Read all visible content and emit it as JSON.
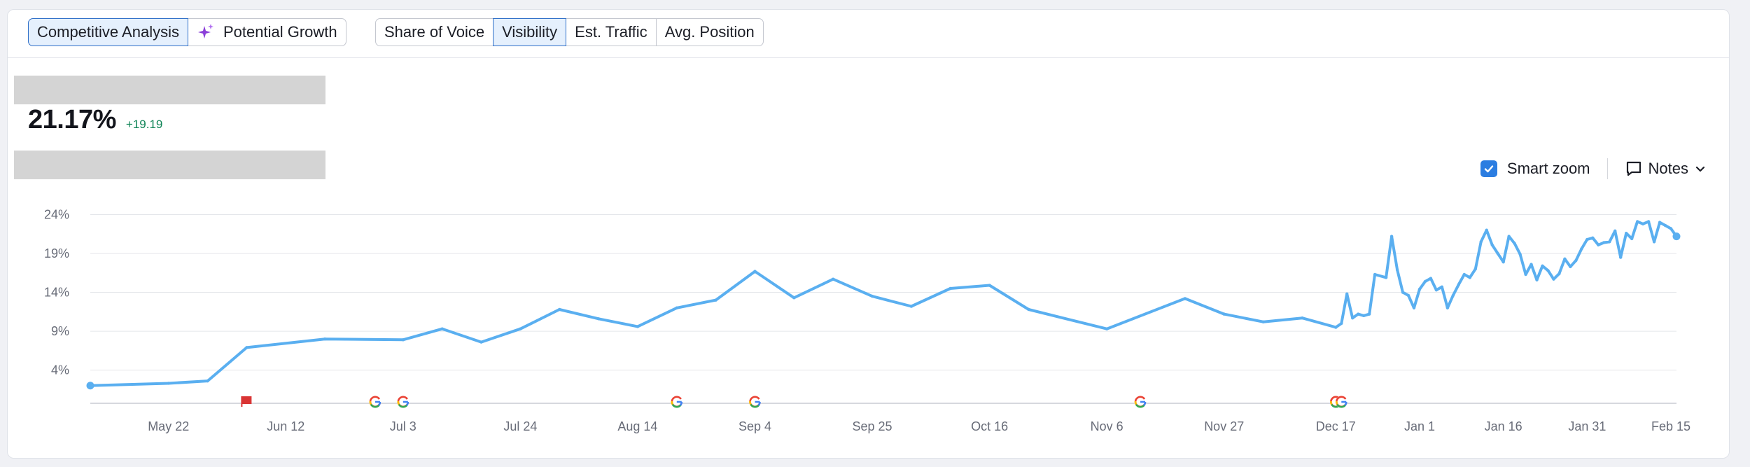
{
  "toolbar": {
    "analysis_tabs": [
      {
        "label": "Competitive Analysis",
        "active": true
      },
      {
        "label": "Potential Growth",
        "active": false,
        "icon": "sparkle-icon"
      }
    ],
    "metric_tabs": [
      {
        "label": "Share of Voice",
        "active": false
      },
      {
        "label": "Visibility",
        "active": true
      },
      {
        "label": "Est. Traffic",
        "active": false
      },
      {
        "label": "Avg. Position",
        "active": false
      }
    ]
  },
  "summary": {
    "value": "21.17%",
    "delta": "+19.19"
  },
  "controls": {
    "smart_zoom_label": "Smart zoom",
    "smart_zoom_checked": true,
    "notes_label": "Notes"
  },
  "colors": {
    "line": "#5aaff0",
    "accent": "#2b7de1",
    "positive": "#0f8456",
    "grid": "#e4e6ea",
    "note_flag": "#d93434",
    "google_blue": "#4285f4",
    "google_red": "#ea4335",
    "google_yellow": "#fbbc05",
    "google_green": "#34a853"
  },
  "chart_data": {
    "type": "line",
    "y_tick_labels": [
      "24%",
      "19%",
      "14%",
      "9%",
      "4%"
    ],
    "y_ticks": [
      24,
      19,
      14,
      9,
      4
    ],
    "ylim": [
      0,
      24
    ],
    "x_tick_labels": [
      "May 22",
      "Jun 12",
      "Jul 3",
      "Jul 24",
      "Aug 14",
      "Sep 4",
      "Sep 25",
      "Oct 16",
      "Nov 6",
      "Nov 27",
      "Dec 17",
      "Jan 1",
      "Jan 16",
      "Jan 31",
      "Feb 15"
    ],
    "grid": true,
    "series": [
      {
        "values": [
          [
            "May 8",
            2.0
          ],
          [
            "May 22",
            2.3
          ],
          [
            "May 29",
            2.6
          ],
          [
            "Jun 5",
            6.9
          ],
          [
            "Jun 19",
            8.0
          ],
          [
            "Jul 3",
            7.9
          ],
          [
            "Jul 10",
            9.3
          ],
          [
            "Jul 17",
            7.6
          ],
          [
            "Jul 24",
            9.3
          ],
          [
            "Jul 31",
            11.8
          ],
          [
            "Aug 7",
            10.6
          ],
          [
            "Aug 14",
            9.6
          ],
          [
            "Aug 21",
            12.0
          ],
          [
            "Aug 28",
            13.0
          ],
          [
            "Sep 4",
            16.7
          ],
          [
            "Sep 11",
            13.3
          ],
          [
            "Sep 18",
            15.7
          ],
          [
            "Sep 25",
            13.5
          ],
          [
            "Oct 2",
            12.2
          ],
          [
            "Oct 9",
            14.5
          ],
          [
            "Oct 16",
            14.9
          ],
          [
            "Oct 23",
            11.8
          ],
          [
            "Nov 6",
            9.3
          ],
          [
            "Nov 20",
            13.2
          ],
          [
            "Nov 27",
            11.2
          ],
          [
            "Dec 4",
            10.2
          ],
          [
            "Dec 11",
            10.7
          ],
          [
            "Dec 17",
            9.5
          ],
          [
            "Dec 18",
            10.0
          ],
          [
            "Dec 19",
            13.8
          ],
          [
            "Dec 20",
            10.7
          ],
          [
            "Dec 21",
            11.2
          ],
          [
            "Dec 22",
            11.0
          ],
          [
            "Dec 23",
            11.2
          ],
          [
            "Dec 24",
            16.3
          ],
          [
            "Dec 26",
            15.9
          ],
          [
            "Dec 27",
            21.2
          ],
          [
            "Dec 28",
            16.9
          ],
          [
            "Dec 29",
            14.0
          ],
          [
            "Dec 30",
            13.6
          ],
          [
            "Dec 31",
            12.0
          ],
          [
            "Jan 1",
            14.4
          ],
          [
            "Jan 2",
            15.4
          ],
          [
            "Jan 3",
            15.8
          ],
          [
            "Jan 4",
            14.3
          ],
          [
            "Jan 5",
            14.7
          ],
          [
            "Jan 6",
            12.0
          ],
          [
            "Jan 7",
            13.6
          ],
          [
            "Jan 8",
            15.0
          ],
          [
            "Jan 9",
            16.3
          ],
          [
            "Jan 10",
            15.9
          ],
          [
            "Jan 11",
            17.0
          ],
          [
            "Jan 12",
            20.5
          ],
          [
            "Jan 13",
            22.0
          ],
          [
            "Jan 14",
            20.1
          ],
          [
            "Jan 15",
            19.0
          ],
          [
            "Jan 16",
            17.9
          ],
          [
            "Jan 17",
            21.2
          ],
          [
            "Jan 18",
            20.3
          ],
          [
            "Jan 19",
            18.9
          ],
          [
            "Jan 20",
            16.3
          ],
          [
            "Jan 21",
            17.6
          ],
          [
            "Jan 22",
            15.6
          ],
          [
            "Jan 23",
            17.4
          ],
          [
            "Jan 24",
            16.8
          ],
          [
            "Jan 25",
            15.7
          ],
          [
            "Jan 26",
            16.4
          ],
          [
            "Jan 27",
            18.3
          ],
          [
            "Jan 28",
            17.3
          ],
          [
            "Jan 29",
            18.1
          ],
          [
            "Jan 30",
            19.6
          ],
          [
            "Jan 31",
            20.8
          ],
          [
            "Feb 1",
            21.0
          ],
          [
            "Feb 2",
            20.1
          ],
          [
            "Feb 3",
            20.4
          ],
          [
            "Feb 4",
            20.5
          ],
          [
            "Feb 5",
            21.9
          ],
          [
            "Feb 6",
            18.5
          ],
          [
            "Feb 7",
            21.6
          ],
          [
            "Feb 8",
            20.9
          ],
          [
            "Feb 9",
            23.1
          ],
          [
            "Feb 10",
            22.8
          ],
          [
            "Feb 11",
            23.1
          ],
          [
            "Feb 12",
            20.5
          ],
          [
            "Feb 13",
            23.0
          ],
          [
            "Feb 14",
            22.6
          ],
          [
            "Feb 15",
            22.2
          ],
          [
            "Feb 16",
            21.2
          ]
        ]
      }
    ],
    "event_markers": [
      {
        "type": "note",
        "date": "Jun 5"
      },
      {
        "type": "google",
        "date": "Jun 28"
      },
      {
        "type": "google",
        "date": "Jul 3"
      },
      {
        "type": "google",
        "date": "Aug 21"
      },
      {
        "type": "google",
        "date": "Sep 4"
      },
      {
        "type": "google",
        "date": "Nov 12"
      },
      {
        "type": "google",
        "date": "Dec 17"
      },
      {
        "type": "google",
        "date": "Dec 18"
      }
    ]
  }
}
